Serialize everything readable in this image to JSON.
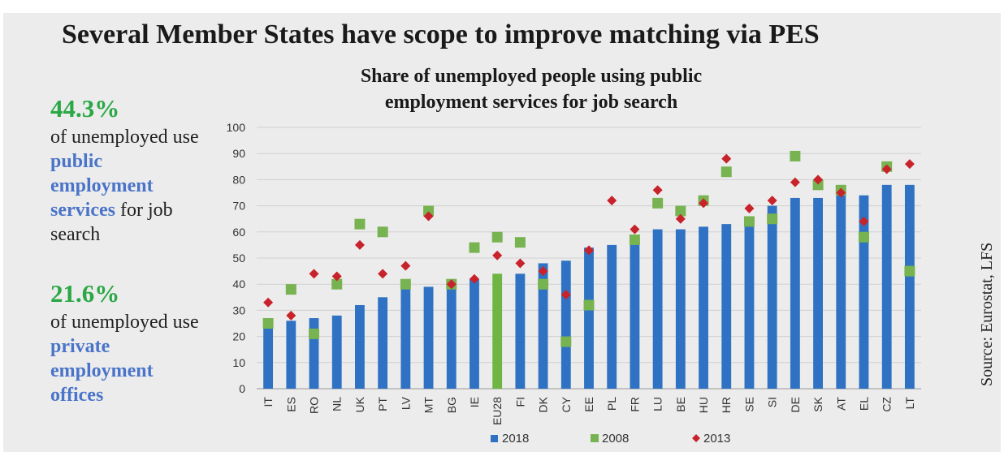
{
  "header": {
    "title": "Several Member States have scope to improve matching via PES"
  },
  "stats": [
    {
      "value": "44.3%",
      "parts": [
        {
          "t": "of unemployed use ",
          "hl": false
        },
        {
          "t": "public employment services",
          "hl": true
        },
        {
          "t": " for job search",
          "hl": false
        }
      ]
    },
    {
      "value": "21.6%",
      "parts": [
        {
          "t": "of unemployed use ",
          "hl": false
        },
        {
          "t": "private employment offices",
          "hl": true
        }
      ]
    }
  ],
  "source": "Source: Eurostat, LFS",
  "colors": {
    "bar_2018": "#2f72c3",
    "bar_eu": "#6eb544",
    "marker_2008": "#78b351",
    "marker_2013": "#c8232b",
    "title_stat": "#2aa845",
    "highlight": "#4a74c9"
  },
  "chart_data": {
    "type": "bar",
    "title": "Share of unemployed people using public employment services for job search",
    "ylim": [
      0,
      100
    ],
    "yticks": [
      0,
      10,
      20,
      30,
      40,
      50,
      60,
      70,
      80,
      90,
      100
    ],
    "grid": true,
    "legend": "bottom",
    "categories": [
      "IT",
      "ES",
      "RO",
      "NL",
      "UK",
      "PT",
      "LV",
      "MT",
      "BG",
      "IE",
      "EU28",
      "FI",
      "DK",
      "CY",
      "EE",
      "PL",
      "FR",
      "LU",
      "BE",
      "HU",
      "HR",
      "SE",
      "SI",
      "DE",
      "SK",
      "AT",
      "EL",
      "CZ",
      "LT"
    ],
    "series": [
      {
        "name": "2018",
        "kind": "bar",
        "values": [
          23,
          26,
          27,
          28,
          32,
          35,
          39,
          39,
          39,
          42,
          44,
          44,
          48,
          49,
          54,
          55,
          56,
          61,
          61,
          62,
          63,
          63,
          70,
          73,
          73,
          74,
          74,
          78,
          78
        ]
      },
      {
        "name": "2008",
        "kind": "square",
        "values": [
          25,
          38,
          21,
          40,
          63,
          60,
          40,
          68,
          40,
          54,
          58,
          56,
          40,
          18,
          32,
          null,
          57,
          71,
          68,
          72,
          83,
          64,
          65,
          89,
          78,
          76,
          58,
          85,
          45
        ]
      },
      {
        "name": "2013",
        "kind": "diamond",
        "values": [
          33,
          28,
          44,
          43,
          55,
          44,
          47,
          66,
          40,
          42,
          51,
          48,
          45,
          36,
          53,
          72,
          61,
          76,
          65,
          71,
          88,
          69,
          72,
          79,
          80,
          75,
          64,
          84,
          86
        ]
      }
    ]
  }
}
